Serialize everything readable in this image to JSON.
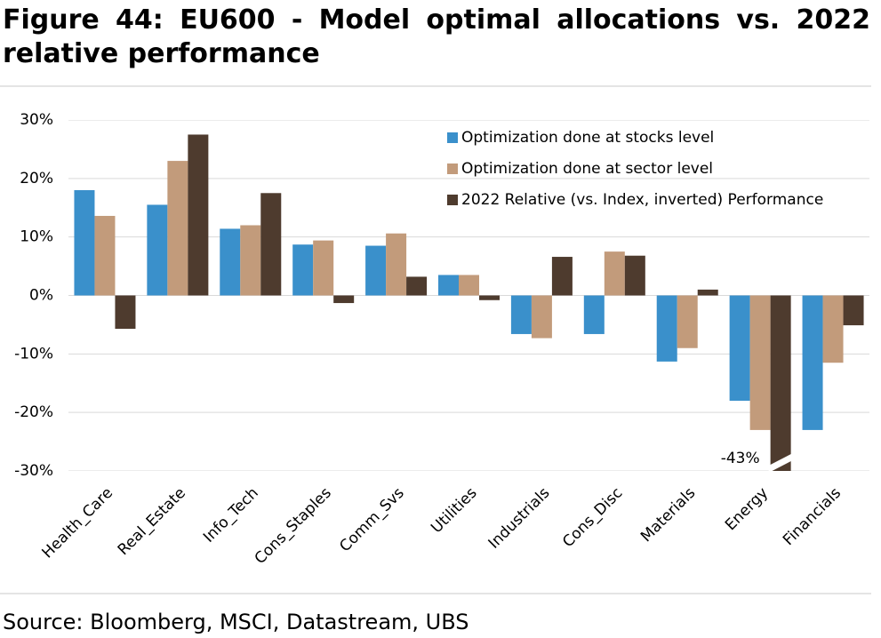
{
  "chart_data": {
    "type": "bar",
    "title": "Figure 44: EU600 - Model optimal allocations vs. 2022 relative performance",
    "source": "Source: Bloomberg, MSCI, Datastream, UBS",
    "categories": [
      "Health_Care",
      "Real_Estate",
      "Info_Tech",
      "Cons_Staples",
      "Comm_Svs",
      "Utilities",
      "Industrials",
      "Cons_Disc",
      "Materials",
      "Energy",
      "Financials"
    ],
    "series": [
      {
        "name": "Optimization done at stocks level",
        "color": "#3a90cb",
        "values": [
          18,
          15.5,
          11.4,
          8.7,
          8.5,
          3.5,
          -6.6,
          -6.6,
          -11.3,
          -18,
          -23
        ]
      },
      {
        "name": "Optimization done at sector level",
        "color": "#c29b7b",
        "values": [
          13.6,
          23,
          12,
          9.4,
          10.6,
          3.5,
          -7.3,
          7.5,
          -9,
          -23,
          -11.5
        ]
      },
      {
        "name": "2022 Relative (vs. Index, inverted) Performance",
        "color": "#4e3b2e",
        "values": [
          -5.7,
          27.5,
          17.5,
          -1.3,
          3.2,
          -0.8,
          6.6,
          6.8,
          1,
          -43,
          -5.1
        ],
        "value_labels": [
          null,
          null,
          null,
          null,
          null,
          null,
          null,
          null,
          null,
          "-43%",
          null
        ]
      }
    ],
    "ylim": [
      -30,
      30
    ],
    "yticks": [
      {
        "value": 30,
        "label": "30%"
      },
      {
        "value": 20,
        "label": "20%"
      },
      {
        "value": 10,
        "label": "10%"
      },
      {
        "value": 0,
        "label": "0%"
      },
      {
        "value": -10,
        "label": "-10%"
      },
      {
        "value": -20,
        "label": "-20%"
      },
      {
        "value": -30,
        "label": "-30%"
      }
    ],
    "negative_tick_color": "#e2231a",
    "grid": true,
    "legend": "upper right"
  }
}
